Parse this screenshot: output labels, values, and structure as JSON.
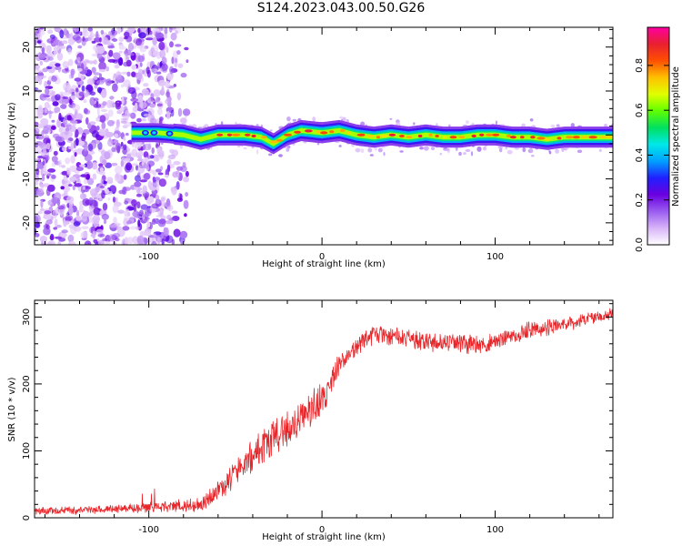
{
  "title": "S124.2023.043.00.50.G26",
  "chart_data": [
    {
      "type": "heatmap",
      "xlabel": "Height of straight line (km)",
      "ylabel": "Frequency (Hz)",
      "xlim": [
        -166,
        168
      ],
      "ylim": [
        -25,
        24.5
      ],
      "xticks": [
        -100,
        0,
        100
      ],
      "yticks": [
        -20,
        -10,
        0,
        10,
        20
      ],
      "grid": false,
      "colorbar": {
        "label": "Normalized spectral amplitude",
        "range": [
          0,
          0.97
        ],
        "ticks": [
          "0.0",
          "0.2",
          "0.4",
          "0.6",
          "0.8"
        ],
        "tick_values": [
          0,
          0.2,
          0.4,
          0.6,
          0.8
        ],
        "colormap": [
          "#ffffff",
          "#d8b4f8",
          "#9a5cf0",
          "#6a00e0",
          "#2020ff",
          "#00a0ff",
          "#00e8e8",
          "#00e060",
          "#60ff00",
          "#e0ff00",
          "#ffc000",
          "#ff5000",
          "#e82030",
          "#ff00a0"
        ]
      },
      "ridge": {
        "x": [
          -110,
          -95,
          -80,
          -70,
          -60,
          -45,
          -35,
          -28,
          -20,
          -12,
          0,
          10,
          20,
          30,
          40,
          50,
          60,
          70,
          80,
          90,
          100,
          110,
          120,
          130,
          140,
          150,
          160,
          168
        ],
        "y": [
          0.5,
          0.5,
          0.0,
          -1.0,
          0.0,
          0.0,
          -0.5,
          -2.0,
          0.0,
          1.0,
          0.5,
          1.0,
          0.0,
          -0.5,
          0.0,
          -0.5,
          0.0,
          -0.5,
          -0.5,
          0.0,
          0.0,
          -0.5,
          -0.5,
          -1.0,
          -0.5,
          -0.5,
          -0.5,
          -0.5
        ]
      },
      "noise_region": [
        -166,
        -75
      ]
    },
    {
      "type": "line",
      "xlabel": "Height of straight line (km)",
      "ylabel": "SNR (10 * v/v)",
      "xlim": [
        -166,
        168
      ],
      "ylim": [
        0,
        325
      ],
      "xticks": [
        -100,
        0,
        100
      ],
      "yticks": [
        0,
        100,
        200,
        300
      ],
      "grid": false,
      "series": [
        {
          "color": "#e8262a",
          "x": [
            -166,
            -140,
            -120,
            -100,
            -80,
            -70,
            -60,
            -50,
            -40,
            -30,
            -20,
            -10,
            0,
            5,
            10,
            15,
            20,
            25,
            30,
            40,
            50,
            60,
            70,
            80,
            90,
            100,
            110,
            120,
            130,
            140,
            150,
            160,
            168
          ],
          "values": [
            10,
            12,
            13,
            15,
            18,
            20,
            40,
            70,
            95,
            115,
            135,
            150,
            175,
            200,
            230,
            245,
            255,
            268,
            275,
            272,
            268,
            262,
            262,
            262,
            258,
            262,
            272,
            280,
            285,
            290,
            295,
            300,
            305
          ],
          "noise_amplitude": [
            5,
            5,
            5,
            7,
            8,
            10,
            14,
            18,
            22,
            25,
            25,
            22,
            22,
            18,
            14,
            12,
            12,
            12,
            12,
            12,
            12,
            12,
            12,
            12,
            12,
            12,
            11,
            10,
            10,
            10,
            9,
            9,
            9
          ]
        }
      ]
    }
  ]
}
